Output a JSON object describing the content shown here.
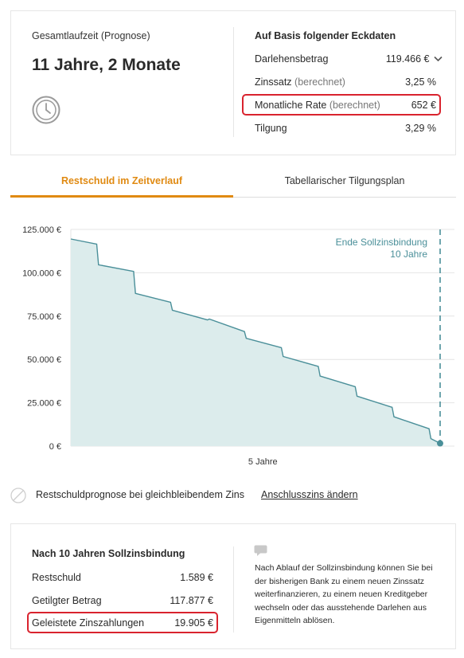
{
  "summary": {
    "duration_label": "Gesamtlaufzeit (Prognose)",
    "duration_value": "11 Jahre, 2 Monate",
    "clock_icon": "clock-icon"
  },
  "basis": {
    "title": "Auf Basis folgender Eckdaten",
    "rows": [
      {
        "label": "Darlehensbetrag",
        "suffix": "",
        "value": "119.466 €"
      },
      {
        "label": "Zinssatz",
        "suffix": "(berechnet)",
        "value": "3,25 %"
      },
      {
        "label": "Monatliche Rate",
        "suffix": "(berechnet)",
        "value": "652 €"
      },
      {
        "label": "Tilgung",
        "suffix": "",
        "value": "3,29 %"
      }
    ]
  },
  "tabs": [
    {
      "label": "Restschuld im Zeitverlauf",
      "active": true
    },
    {
      "label": "Tabellarischer Tilgungsplan",
      "active": false
    }
  ],
  "chart_data": {
    "type": "area",
    "title": "",
    "xlabel": "",
    "ylabel": "",
    "x_tick_labels": [
      "5 Jahre"
    ],
    "y_tick_labels": [
      "125.000 €",
      "100.000 €",
      "75.000 €",
      "50.000 €",
      "25.000 €",
      "0 €"
    ],
    "ylim": [
      0,
      125000
    ],
    "x_unit": "years",
    "xlim": [
      0,
      10
    ],
    "series": [
      {
        "x": [
          0,
          0.7,
          0.75,
          1.7,
          1.75,
          2.7,
          2.75,
          3.7,
          3.75,
          4.7,
          4.75,
          5.7,
          5.75,
          6.7,
          6.75,
          7.7,
          7.75,
          8.7,
          8.75,
          9.7,
          9.75,
          10
        ],
        "values": [
          119466,
          116500,
          104600,
          100800,
          88100,
          83000,
          78400,
          72800,
          73300,
          66100,
          62200,
          56800,
          51700,
          46000,
          40400,
          34300,
          28800,
          22400,
          16900,
          10000,
          4300,
          1589
        ]
      }
    ],
    "annotation": {
      "text_line1": "Ende Sollzinsbindung",
      "text_line2": "10 Jahre",
      "x": 10
    },
    "grid": true,
    "colors": {
      "fill": "#dcecec",
      "line": "#4a8f99",
      "marker": "#4a8f99"
    }
  },
  "note": {
    "text": "Restschuldprognose bei gleichbleibendem Zins",
    "link": "Anschlusszins ändern"
  },
  "after": {
    "title": "Nach 10 Jahren Sollzinsbindung",
    "rows": [
      {
        "label": "Restschuld",
        "value": "1.589 €"
      },
      {
        "label": "Getilgter Betrag",
        "value": "117.877 €"
      },
      {
        "label": "Geleistete Zinszahlungen",
        "value": "19.905 €"
      }
    ],
    "info": "Nach Ablauf der Sollzinsbindung können Sie bei der bisherigen Bank zu einem neuen Zinssatz weiterfinanzieren, zu einem neuen Kreditgeber wechseln oder das ausstehende Darlehen aus Eigenmitteln ablösen."
  },
  "colors": {
    "accent": "#e08a12",
    "highlight": "#d9232e",
    "chart_line": "#4a8f99"
  }
}
